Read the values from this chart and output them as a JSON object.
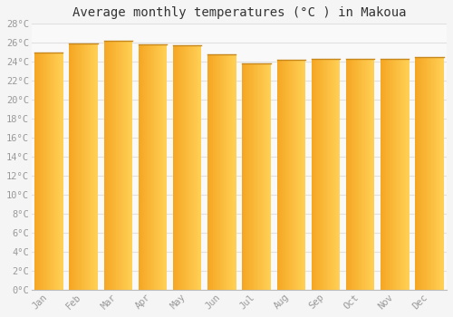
{
  "title": "Average monthly temperatures (°C ) in Makoua",
  "months": [
    "Jan",
    "Feb",
    "Mar",
    "Apr",
    "May",
    "Jun",
    "Jul",
    "Aug",
    "Sep",
    "Oct",
    "Nov",
    "Dec"
  ],
  "temperatures": [
    25.0,
    25.9,
    26.2,
    25.8,
    25.7,
    24.8,
    23.8,
    24.2,
    24.3,
    24.3,
    24.3,
    24.5
  ],
  "bar_color_left": "#F5A623",
  "bar_color_right": "#FFD055",
  "bar_top_border": "#C8871A",
  "ylim": [
    0,
    28
  ],
  "ytick_step": 2,
  "background_color": "#f5f5f5",
  "plot_bg_color": "#f9f9f9",
  "grid_color": "#e0e0e0",
  "title_fontsize": 10,
  "tick_fontsize": 7.5,
  "title_font": "monospace",
  "tick_font": "monospace",
  "tick_color": "#999999",
  "bar_width": 0.82
}
